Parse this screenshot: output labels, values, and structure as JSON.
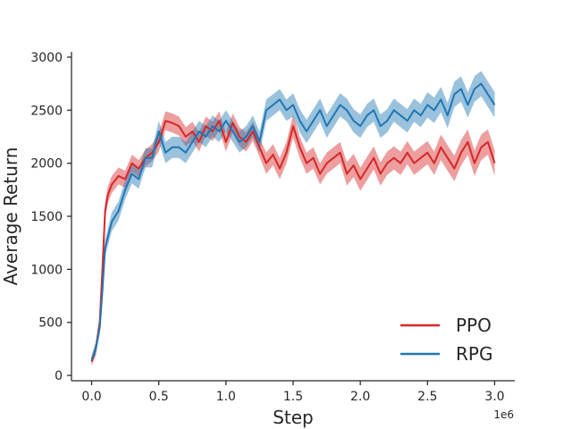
{
  "chart_data": {
    "type": "line",
    "title": "",
    "xlabel": "Step",
    "ylabel": "Average Return",
    "x_offset_label": "1e6",
    "xlim": [
      -0.15,
      3.15
    ],
    "ylim": [
      -50,
      3050
    ],
    "xticks": [
      0.0,
      0.5,
      1.0,
      1.5,
      2.0,
      2.5,
      3.0
    ],
    "xtick_labels": [
      "0.0",
      "0.5",
      "1.0",
      "1.5",
      "2.0",
      "2.5",
      "3.0"
    ],
    "yticks": [
      0,
      500,
      1000,
      1500,
      2000,
      2500,
      3000
    ],
    "ytick_labels": [
      "0",
      "500",
      "1000",
      "1500",
      "2000",
      "2500",
      "3000"
    ],
    "grid": false,
    "legend_position": "lower-right",
    "series": [
      {
        "name": "PPO",
        "color": "#d62728",
        "x": [
          0.0,
          0.03,
          0.06,
          0.08,
          0.1,
          0.12,
          0.15,
          0.2,
          0.25,
          0.3,
          0.35,
          0.4,
          0.45,
          0.5,
          0.55,
          0.6,
          0.65,
          0.7,
          0.75,
          0.8,
          0.85,
          0.9,
          0.95,
          1.0,
          1.05,
          1.1,
          1.15,
          1.2,
          1.25,
          1.3,
          1.35,
          1.4,
          1.45,
          1.5,
          1.55,
          1.6,
          1.65,
          1.7,
          1.75,
          1.8,
          1.85,
          1.9,
          1.95,
          2.0,
          2.05,
          2.1,
          2.15,
          2.2,
          2.25,
          2.3,
          2.35,
          2.4,
          2.45,
          2.5,
          2.55,
          2.6,
          2.65,
          2.7,
          2.75,
          2.8,
          2.85,
          2.9,
          2.95,
          3.0
        ],
        "y": [
          130,
          250,
          500,
          1000,
          1550,
          1700,
          1800,
          1880,
          1850,
          2000,
          1950,
          2050,
          2100,
          2200,
          2400,
          2380,
          2350,
          2250,
          2300,
          2200,
          2350,
          2300,
          2400,
          2200,
          2380,
          2250,
          2200,
          2300,
          2150,
          2000,
          2080,
          1950,
          2100,
          2350,
          2150,
          2000,
          2050,
          1900,
          2000,
          2050,
          2100,
          1900,
          1980,
          1850,
          1950,
          2050,
          1900,
          2000,
          2050,
          2000,
          2100,
          2000,
          2050,
          2100,
          2000,
          2150,
          2050,
          1950,
          2100,
          2200,
          2000,
          2150,
          2200,
          2000
        ],
        "band": [
          40,
          60,
          60,
          80,
          80,
          80,
          80,
          80,
          80,
          80,
          80,
          80,
          80,
          90,
          90,
          90,
          90,
          90,
          90,
          90,
          90,
          90,
          90,
          90,
          90,
          90,
          90,
          90,
          90,
          100,
          100,
          100,
          100,
          110,
          100,
          100,
          100,
          100,
          100,
          100,
          100,
          110,
          110,
          110,
          110,
          110,
          110,
          110,
          110,
          110,
          110,
          110,
          110,
          110,
          110,
          120,
          120,
          120,
          120,
          120,
          120,
          120,
          120,
          120
        ]
      },
      {
        "name": "RPG",
        "color": "#1f77b4",
        "x": [
          0.0,
          0.03,
          0.06,
          0.08,
          0.1,
          0.12,
          0.15,
          0.2,
          0.25,
          0.3,
          0.35,
          0.4,
          0.45,
          0.5,
          0.55,
          0.6,
          0.65,
          0.7,
          0.75,
          0.8,
          0.85,
          0.9,
          0.95,
          1.0,
          1.05,
          1.1,
          1.15,
          1.2,
          1.25,
          1.3,
          1.35,
          1.4,
          1.45,
          1.5,
          1.55,
          1.6,
          1.65,
          1.7,
          1.75,
          1.8,
          1.85,
          1.9,
          1.95,
          2.0,
          2.05,
          2.1,
          2.15,
          2.2,
          2.25,
          2.3,
          2.35,
          2.4,
          2.45,
          2.5,
          2.55,
          2.6,
          2.65,
          2.7,
          2.75,
          2.8,
          2.85,
          2.9,
          2.95,
          3.0
        ],
        "y": [
          150,
          250,
          450,
          800,
          1200,
          1300,
          1450,
          1550,
          1750,
          1900,
          1850,
          2050,
          2050,
          2300,
          2100,
          2150,
          2150,
          2100,
          2200,
          2300,
          2250,
          2350,
          2300,
          2400,
          2300,
          2200,
          2250,
          2350,
          2200,
          2500,
          2550,
          2600,
          2500,
          2550,
          2400,
          2300,
          2400,
          2500,
          2350,
          2450,
          2550,
          2500,
          2400,
          2350,
          2450,
          2500,
          2350,
          2400,
          2500,
          2450,
          2400,
          2500,
          2450,
          2550,
          2500,
          2600,
          2450,
          2650,
          2700,
          2550,
          2700,
          2750,
          2650,
          2550
        ],
        "band": [
          40,
          60,
          60,
          80,
          80,
          80,
          90,
          90,
          90,
          90,
          90,
          90,
          90,
          100,
          100,
          100,
          100,
          100,
          100,
          100,
          100,
          100,
          100,
          100,
          100,
          100,
          100,
          100,
          100,
          100,
          100,
          100,
          100,
          110,
          110,
          110,
          110,
          110,
          110,
          110,
          110,
          110,
          110,
          110,
          110,
          110,
          110,
          110,
          110,
          110,
          110,
          110,
          110,
          120,
          120,
          120,
          120,
          120,
          120,
          120,
          120,
          120,
          120,
          120
        ]
      }
    ]
  }
}
